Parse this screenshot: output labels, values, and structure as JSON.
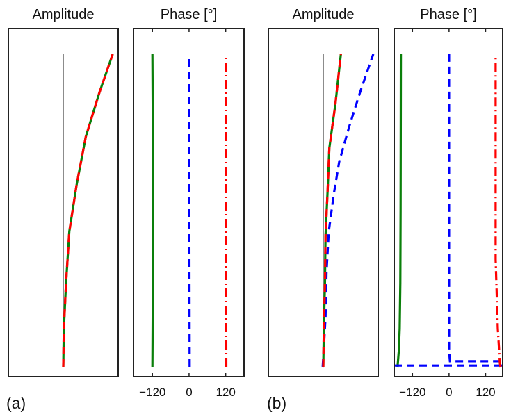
{
  "panel_labels": [
    "(a)",
    "(b)"
  ],
  "chart_data": [
    {
      "type": "line",
      "group": "(a)",
      "title": "Amplitude",
      "xlim": [
        -1,
        1
      ],
      "ylim": [
        -0.031,
        1.082
      ],
      "xticks": [],
      "grid": false,
      "series": [
        {
          "color": "#8c8c8c",
          "style": "solid",
          "points": [
            [
              0,
              0
            ],
            [
              0,
              1
            ]
          ]
        },
        {
          "color": "#0a7f0a",
          "style": "solid",
          "points": [
            [
              0,
              0
            ],
            [
              0.01,
              0.122
            ],
            [
              0.05,
              0.269
            ],
            [
              0.11,
              0.433
            ],
            [
              0.24,
              0.58
            ],
            [
              0.41,
              0.736
            ],
            [
              0.66,
              0.878
            ],
            [
              0.9,
              1
            ]
          ]
        },
        {
          "color": "#ff0000",
          "style": "dashed",
          "points": [
            [
              0,
              0
            ],
            [
              0.01,
              0.122
            ],
            [
              0.05,
              0.269
            ],
            [
              0.11,
              0.433
            ],
            [
              0.24,
              0.58
            ],
            [
              0.41,
              0.736
            ],
            [
              0.66,
              0.878
            ],
            [
              0.9,
              1
            ]
          ]
        }
      ]
    },
    {
      "type": "line",
      "group": "(a)",
      "title": "Phase [°]",
      "xlim": [
        -182,
        180
      ],
      "ylim": [
        -0.031,
        1.082
      ],
      "xticks": [
        -120,
        0,
        120
      ],
      "xtick_labels": [
        "−120",
        "0",
        "120"
      ],
      "grid": false,
      "series": [
        {
          "color": "#0a7f0a",
          "style": "solid",
          "points": [
            [
              -120,
              0
            ],
            [
              -119,
              0.2
            ],
            [
              -118,
              0.5
            ],
            [
              -119,
              0.8
            ],
            [
              -120,
              1
            ]
          ]
        },
        {
          "color": "#0000ff",
          "style": "dashed",
          "points": [
            [
              2,
              0
            ],
            [
              1,
              0.4
            ],
            [
              0,
              1
            ]
          ]
        },
        {
          "color": "#ff0000",
          "style": "dashdot",
          "points": [
            [
              122,
              0
            ],
            [
              121,
              0.4
            ],
            [
              120,
              1
            ]
          ]
        }
      ]
    },
    {
      "type": "line",
      "group": "(b)",
      "title": "Amplitude",
      "xlim": [
        -1,
        1
      ],
      "ylim": [
        -0.031,
        1.082
      ],
      "xticks": [],
      "grid": false,
      "series": [
        {
          "color": "#8c8c8c",
          "style": "solid",
          "points": [
            [
              0,
              0
            ],
            [
              0,
              1
            ]
          ]
        },
        {
          "color": "#0000ff",
          "style": "dashed",
          "points": [
            [
              -0.01,
              0
            ],
            [
              0.04,
              0.158
            ],
            [
              0.06,
              0.307
            ],
            [
              0.1,
              0.433
            ],
            [
              0.19,
              0.551
            ],
            [
              0.29,
              0.656
            ],
            [
              0.47,
              0.767
            ],
            [
              0.67,
              0.878
            ],
            [
              0.91,
              1
            ]
          ]
        },
        {
          "color": "#0a7f0a",
          "style": "solid",
          "points": [
            [
              0,
              0
            ],
            [
              0.01,
              0.122
            ],
            [
              0.03,
              0.269
            ],
            [
              0.04,
              0.418
            ],
            [
              0.08,
              0.567
            ],
            [
              0.11,
              0.7
            ],
            [
              0.22,
              0.84
            ],
            [
              0.32,
              1
            ]
          ]
        },
        {
          "color": "#ff0000",
          "style": "dashed",
          "points": [
            [
              0,
              0
            ],
            [
              0.01,
              0.122
            ],
            [
              0.03,
              0.269
            ],
            [
              0.04,
              0.418
            ],
            [
              0.08,
              0.567
            ],
            [
              0.11,
              0.7
            ],
            [
              0.22,
              0.84
            ],
            [
              0.32,
              1
            ]
          ]
        }
      ]
    },
    {
      "type": "line",
      "group": "(b)",
      "title": "Phase [°]",
      "xlim": [
        -180,
        176
      ],
      "ylim": [
        -0.031,
        1.082
      ],
      "xticks": [
        -120,
        0,
        120
      ],
      "xtick_labels": [
        "−120",
        "0",
        "120"
      ],
      "grid": false,
      "series": [
        {
          "color": "#0a7f0a",
          "style": "solid",
          "points": [
            [
              -169,
              0
            ],
            [
              -165,
              0.05
            ],
            [
              -162,
              0.122
            ],
            [
              -160,
              0.269
            ],
            [
              -159,
              0.5
            ],
            [
              -158,
              1
            ]
          ]
        },
        {
          "color": "#0000ff",
          "style": "dashed",
          "points": [
            [
              0,
              1
            ],
            [
              0,
              0.051
            ],
            [
              3,
              0.018
            ],
            [
              176,
              0.018
            ]
          ]
        },
        {
          "color": "#0000ff",
          "style": "dashed",
          "points": [
            [
              -180,
              0.004
            ],
            [
              176,
              0.004
            ]
          ]
        },
        {
          "color": "#ff0000",
          "style": "dashdot",
          "points": [
            [
              169,
              0
            ],
            [
              167,
              0.011
            ],
            [
              160,
              0.122
            ],
            [
              153,
              0.344
            ],
            [
              153,
              0.99
            ]
          ]
        }
      ]
    }
  ]
}
